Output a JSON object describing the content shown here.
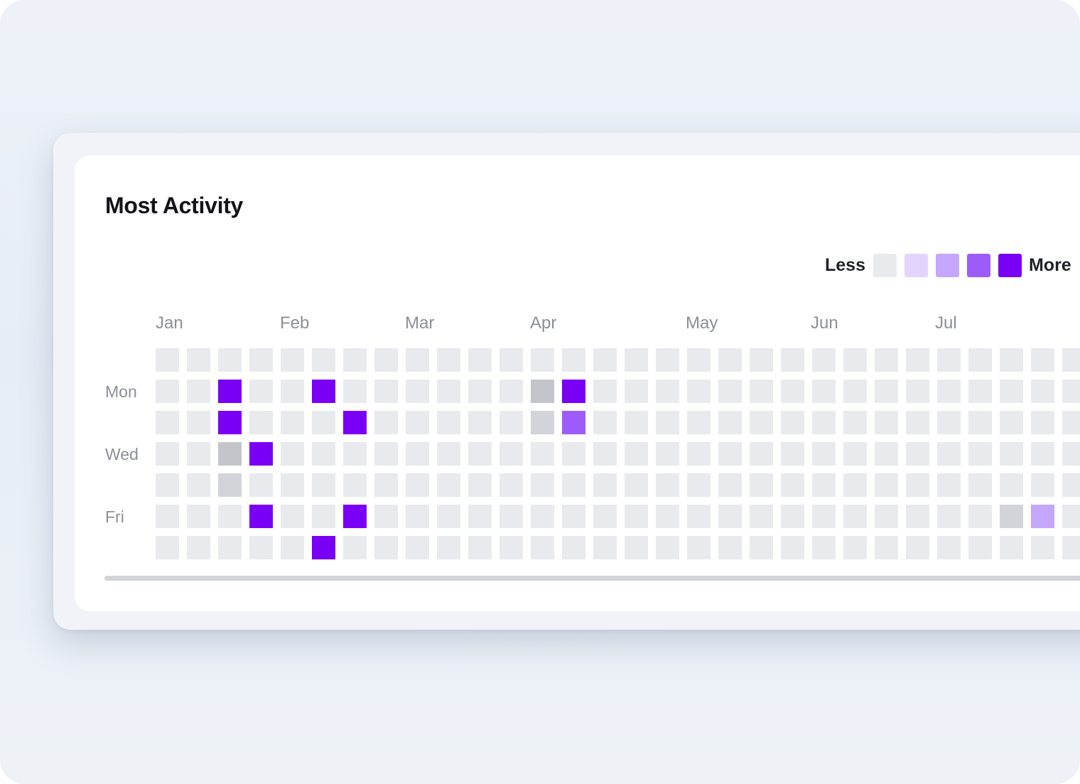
{
  "card": {
    "title": "Most Activity"
  },
  "legend": {
    "less_label": "Less",
    "more_label": "More",
    "levels": [
      "#e9eaee",
      "#e3d4fd",
      "#c4a6fb",
      "#9d5cfa",
      "#7a00f5"
    ]
  },
  "colors": {
    "empty": "#e9eaee",
    "grey_dark": "#c4c5ca",
    "grey_light": "#d3d4d9",
    "violet_light": "#c4a6fb",
    "violet_mid": "#9d5cfa",
    "violet_full": "#7a00f5"
  },
  "chart_data": {
    "type": "heatmap",
    "months": [
      "Jan",
      "Feb",
      "Mar",
      "Apr",
      "May",
      "Jun",
      "Jul"
    ],
    "day_labels": [
      "Mon",
      "Wed",
      "Fri"
    ],
    "rows": 7,
    "weeks_visible": 30,
    "active_cells": [
      {
        "week": 2,
        "day": 1,
        "level": "violet_full"
      },
      {
        "week": 2,
        "day": 2,
        "level": "violet_full"
      },
      {
        "week": 2,
        "day": 3,
        "level": "grey_dark"
      },
      {
        "week": 2,
        "day": 4,
        "level": "grey_light"
      },
      {
        "week": 3,
        "day": 3,
        "level": "violet_full"
      },
      {
        "week": 3,
        "day": 5,
        "level": "violet_full"
      },
      {
        "week": 5,
        "day": 1,
        "level": "violet_full"
      },
      {
        "week": 5,
        "day": 6,
        "level": "violet_full"
      },
      {
        "week": 6,
        "day": 2,
        "level": "violet_full"
      },
      {
        "week": 6,
        "day": 5,
        "level": "violet_full"
      },
      {
        "week": 12,
        "day": 1,
        "level": "grey_dark"
      },
      {
        "week": 12,
        "day": 2,
        "level": "grey_light"
      },
      {
        "week": 13,
        "day": 1,
        "level": "violet_full"
      },
      {
        "week": 13,
        "day": 2,
        "level": "violet_mid"
      },
      {
        "week": 27,
        "day": 5,
        "level": "grey_light"
      },
      {
        "week": 28,
        "day": 5,
        "level": "violet_light"
      }
    ]
  }
}
